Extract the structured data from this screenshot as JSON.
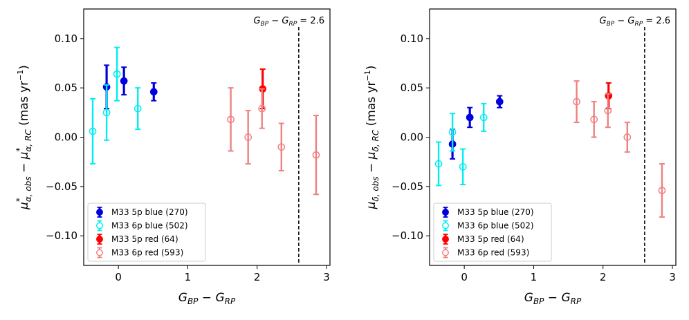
{
  "chart_data": [
    {
      "type": "scatter",
      "title": "",
      "xlabel": "G_BP − G_RP",
      "ylabel": "μ*α,obs − μ*α,RC (mas yr⁻¹)",
      "xlim": [
        -0.5,
        3.05
      ],
      "ylim": [
        -0.13,
        0.13
      ],
      "x_ticks": [
        0,
        1,
        2,
        3
      ],
      "y_ticks": [
        -0.1,
        -0.05,
        0.0,
        0.05,
        0.1
      ],
      "x_tick_labels": [
        "0",
        "1",
        "2",
        "3"
      ],
      "y_tick_labels": [
        "−0.10",
        "−0.05",
        "0.00",
        "0.05",
        "0.10"
      ],
      "vline": {
        "x": 2.6,
        "label": "G_BP − G_RP = 2.6"
      },
      "legend_position": "lower-left",
      "series": [
        {
          "name": "M33 5p blue (270)",
          "color": "#0000dd",
          "filled": true,
          "points": [
            {
              "x": -0.17,
              "y": 0.051,
              "err": 0.022
            },
            {
              "x": 0.08,
              "y": 0.057,
              "err": 0.014
            },
            {
              "x": 0.51,
              "y": 0.046,
              "err": 0.009
            }
          ]
        },
        {
          "name": "M33 6p blue (502)",
          "color": "#00eeee",
          "filled": false,
          "points": [
            {
              "x": -0.37,
              "y": 0.006,
              "err": 0.033
            },
            {
              "x": -0.17,
              "y": 0.025,
              "err": 0.028
            },
            {
              "x": -0.02,
              "y": 0.064,
              "err": 0.027
            },
            {
              "x": 0.28,
              "y": 0.029,
              "err": 0.021
            }
          ]
        },
        {
          "name": "M33 5p red (64)",
          "color": "#ff0000",
          "filled": true,
          "points": [
            {
              "x": 2.08,
              "y": 0.049,
              "err": 0.02
            }
          ]
        },
        {
          "name": "M33 6p red (593)",
          "color": "#ee8080",
          "filled": false,
          "points": [
            {
              "x": 1.62,
              "y": 0.018,
              "err": 0.032
            },
            {
              "x": 1.87,
              "y": 0.0,
              "err": 0.027
            },
            {
              "x": 2.07,
              "y": 0.029,
              "err": 0.02
            },
            {
              "x": 2.35,
              "y": -0.01,
              "err": 0.024
            },
            {
              "x": 2.85,
              "y": -0.018,
              "err": 0.04
            }
          ]
        }
      ]
    },
    {
      "type": "scatter",
      "title": "",
      "xlabel": "G_BP − G_RP",
      "ylabel": "μδ,obs − μδ,RC (mas yr⁻¹)",
      "xlim": [
        -0.5,
        3.05
      ],
      "ylim": [
        -0.13,
        0.13
      ],
      "x_ticks": [
        0,
        1,
        2,
        3
      ],
      "y_ticks": [
        -0.1,
        -0.05,
        0.0,
        0.05,
        0.1
      ],
      "x_tick_labels": [
        "0",
        "1",
        "2",
        "3"
      ],
      "y_tick_labels": [
        "−0.10",
        "−0.05",
        "0.00",
        "0.05",
        "0.10"
      ],
      "vline": {
        "x": 2.6,
        "label": "G_BP − G_RP = 2.6"
      },
      "legend_position": "lower-left",
      "series": [
        {
          "name": "M33 5p blue (270)",
          "color": "#0000dd",
          "filled": true,
          "points": [
            {
              "x": -0.17,
              "y": -0.007,
              "err": 0.015
            },
            {
              "x": 0.08,
              "y": 0.02,
              "err": 0.01
            },
            {
              "x": 0.51,
              "y": 0.036,
              "err": 0.006
            }
          ]
        },
        {
          "name": "M33 6p blue (502)",
          "color": "#00eeee",
          "filled": false,
          "points": [
            {
              "x": -0.37,
              "y": -0.027,
              "err": 0.022
            },
            {
              "x": -0.17,
              "y": 0.005,
              "err": 0.019
            },
            {
              "x": -0.02,
              "y": -0.03,
              "err": 0.018
            },
            {
              "x": 0.28,
              "y": 0.02,
              "err": 0.014
            }
          ]
        },
        {
          "name": "M33 5p red (64)",
          "color": "#ff0000",
          "filled": true,
          "points": [
            {
              "x": 2.08,
              "y": 0.042,
              "err": 0.013
            }
          ]
        },
        {
          "name": "M33 6p red (593)",
          "color": "#ee8080",
          "filled": false,
          "points": [
            {
              "x": 1.62,
              "y": 0.036,
              "err": 0.021
            },
            {
              "x": 1.87,
              "y": 0.018,
              "err": 0.018
            },
            {
              "x": 2.07,
              "y": 0.027,
              "err": 0.017
            },
            {
              "x": 2.35,
              "y": 0.0,
              "err": 0.015
            },
            {
              "x": 2.85,
              "y": -0.054,
              "err": 0.027
            }
          ]
        }
      ]
    }
  ]
}
